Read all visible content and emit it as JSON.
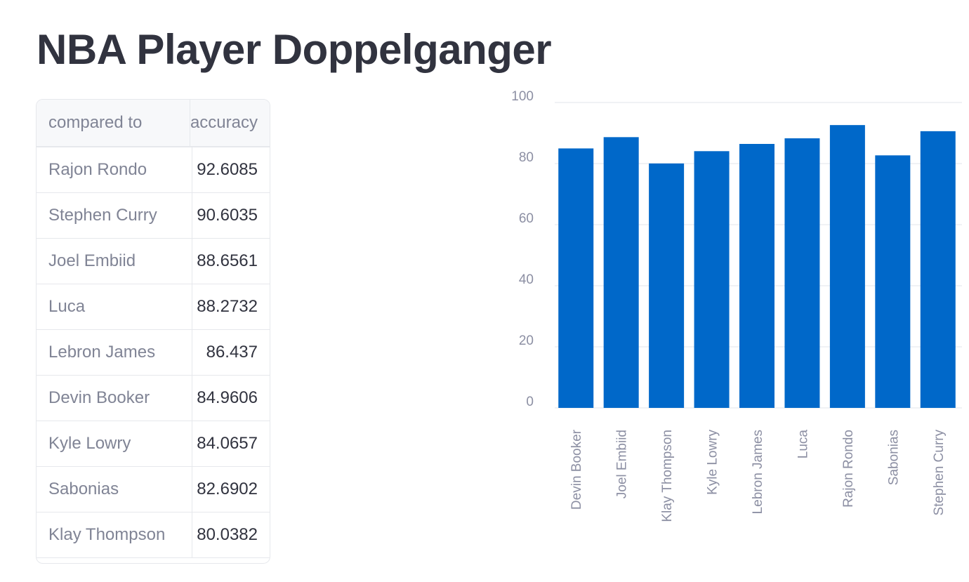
{
  "title": "NBA Player Doppelganger",
  "table": {
    "headers": [
      "compared to",
      "accuracy"
    ],
    "rows": [
      [
        "Rajon Rondo",
        "92.6085"
      ],
      [
        "Stephen Curry",
        "90.6035"
      ],
      [
        "Joel Embiid",
        "88.6561"
      ],
      [
        "Luca",
        "88.2732"
      ],
      [
        "Lebron James",
        "86.437"
      ],
      [
        "Devin Booker",
        "84.9606"
      ],
      [
        "Kyle Lowry",
        "84.0657"
      ],
      [
        "Sabonias",
        "82.6902"
      ],
      [
        "Klay Thompson",
        "80.0382"
      ]
    ]
  },
  "chart_data": {
    "type": "bar",
    "categories": [
      "Devin Booker",
      "Joel Embiid",
      "Klay Thompson",
      "Kyle Lowry",
      "Lebron James",
      "Luca",
      "Rajon Rondo",
      "Sabonias",
      "Stephen Curry"
    ],
    "values": [
      84.9606,
      88.6561,
      80.0382,
      84.0657,
      86.437,
      88.2732,
      92.6085,
      82.6902,
      90.6035
    ],
    "yticks": [
      "0",
      "20",
      "40",
      "60",
      "80",
      "100"
    ],
    "ylim": [
      0,
      100
    ],
    "title": "",
    "xlabel": "",
    "ylabel": "",
    "color": "#0068c9",
    "grid": true
  }
}
